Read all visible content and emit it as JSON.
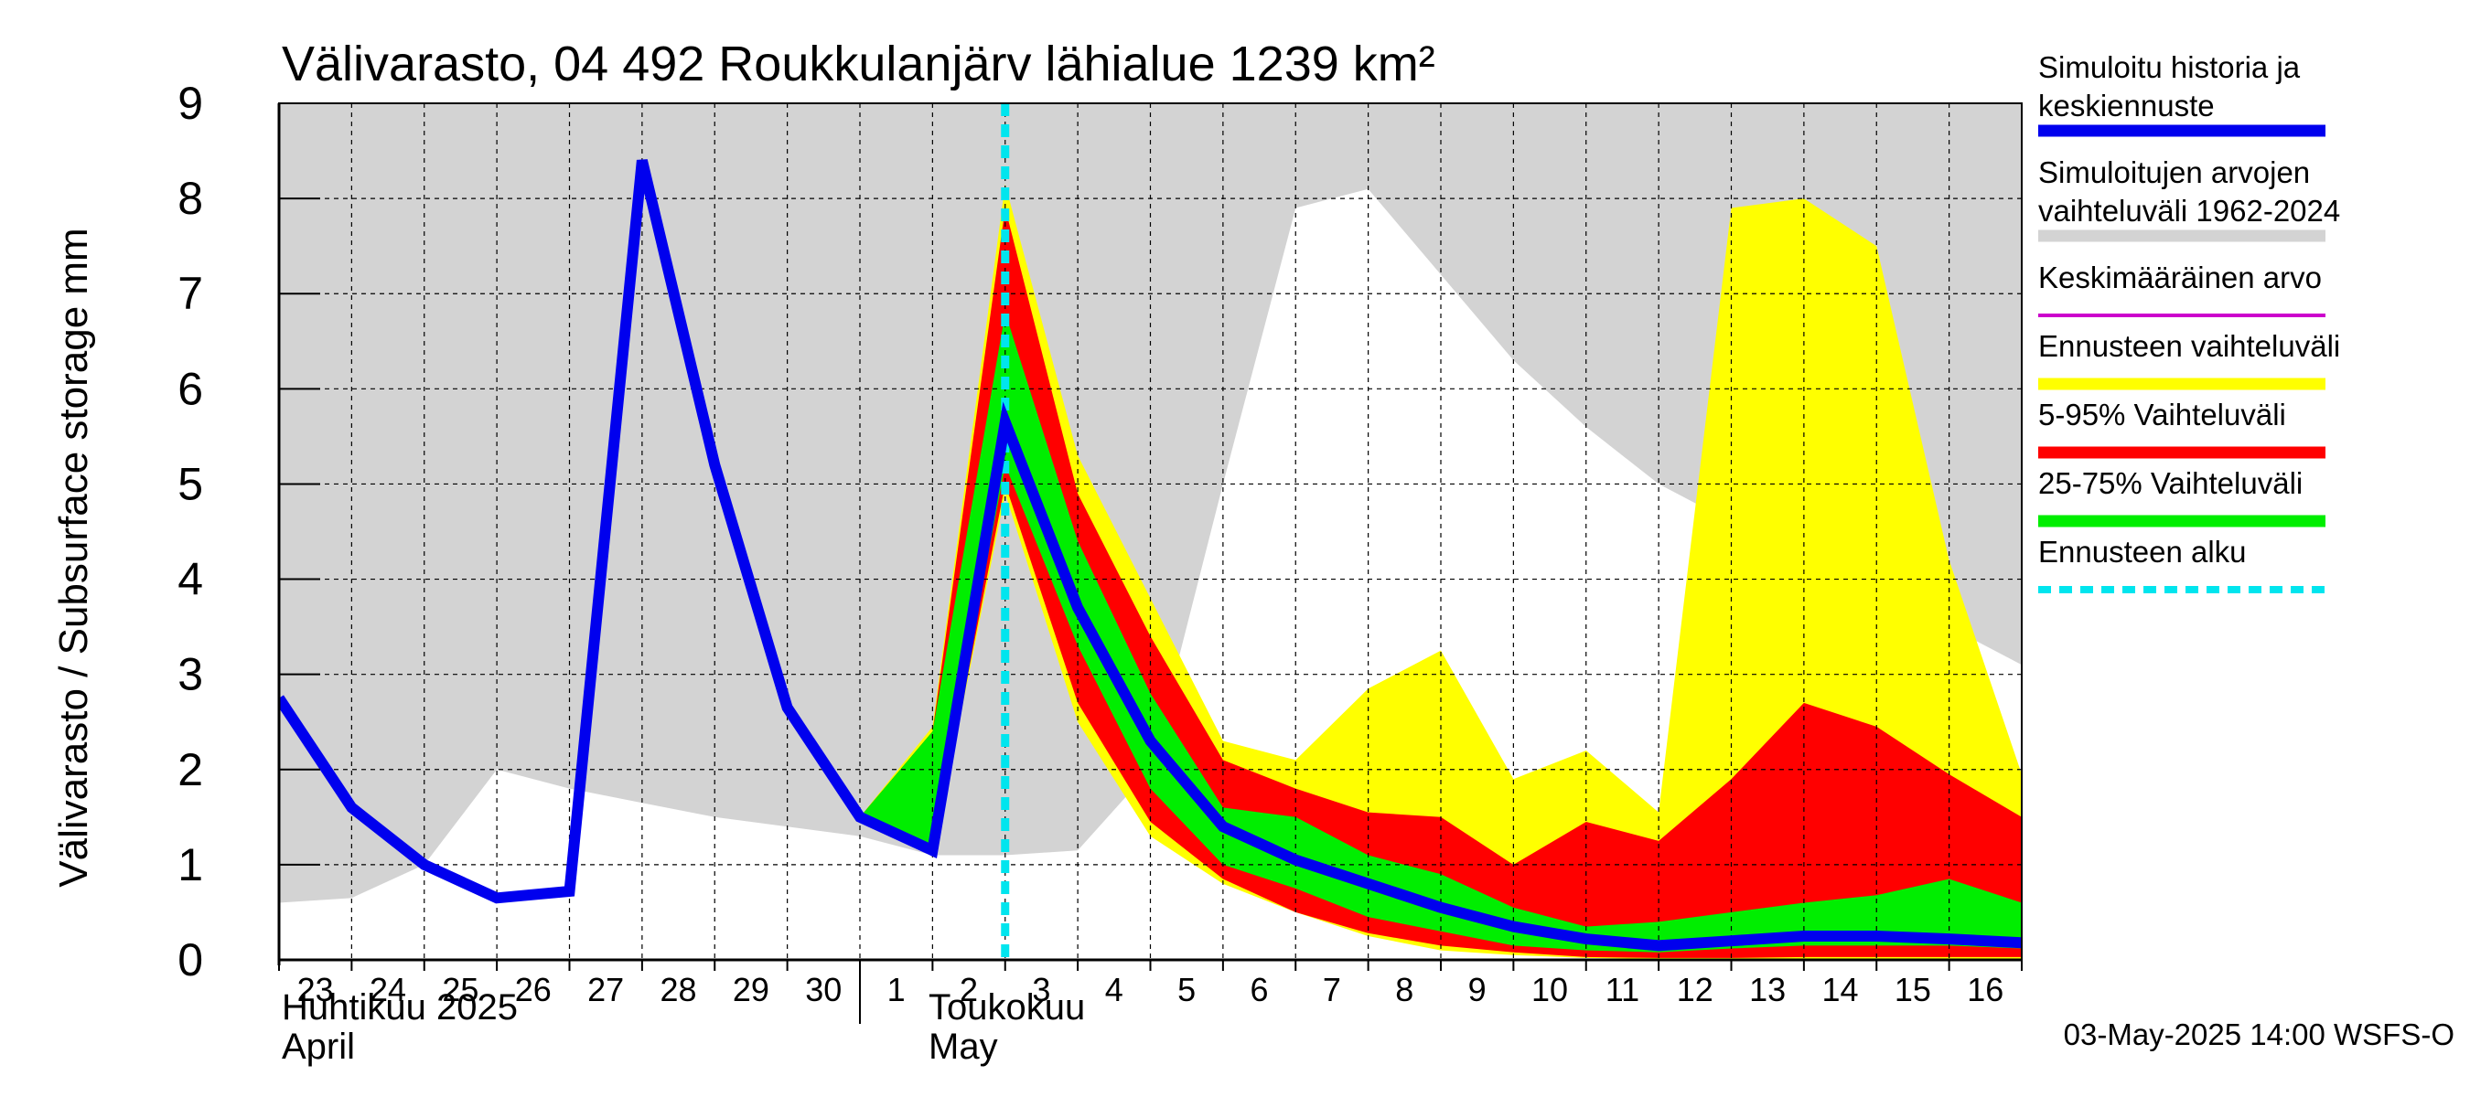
{
  "chart_data": {
    "type": "area",
    "title": "Välivarasto, 04 492 Roukkulanjärv lähialue 1239 km²",
    "ylabel": "Välivarasto / Subsurface storage  mm",
    "xlabel": "",
    "ylim": [
      0,
      9
    ],
    "yticks": [
      "0",
      "1",
      "2",
      "3",
      "4",
      "5",
      "6",
      "7",
      "8",
      "9"
    ],
    "x_days": [
      "2025-04-23",
      "2025-04-24",
      "2025-04-25",
      "2025-04-26",
      "2025-04-27",
      "2025-04-28",
      "2025-04-29",
      "2025-04-30",
      "2025-05-01",
      "2025-05-02",
      "2025-05-03",
      "2025-05-04",
      "2025-05-05",
      "2025-05-06",
      "2025-05-07",
      "2025-05-08",
      "2025-05-09",
      "2025-05-10",
      "2025-05-11",
      "2025-05-12",
      "2025-05-13",
      "2025-05-14",
      "2025-05-15",
      "2025-05-16",
      "2025-05-17"
    ],
    "x_tick_labels": [
      "23",
      "24",
      "25",
      "26",
      "27",
      "28",
      "29",
      "30",
      "1",
      "2",
      "3",
      "4",
      "5",
      "6",
      "7",
      "8",
      "9",
      "10",
      "11",
      "12",
      "13",
      "14",
      "15",
      "16"
    ],
    "months": [
      {
        "fi": "Huhtikuu  2025",
        "en": "April",
        "start_index": 0
      },
      {
        "fi": "Toukokuu",
        "en": "May",
        "start_index": 8
      }
    ],
    "forecast_start_index": 10,
    "series": [
      {
        "name": "Simuloitujen arvojen vaihteluväli 1962-2024",
        "kind": "band",
        "color": "#d3d3d3",
        "lower": [
          0.6,
          0.65,
          1.0,
          2.0,
          1.8,
          1.65,
          1.5,
          1.4,
          1.3,
          1.1,
          1.1,
          1.15,
          2.0,
          5.0,
          7.9,
          8.1,
          7.2,
          6.3,
          5.6,
          5.0,
          4.6,
          4.3,
          3.9,
          3.5,
          3.1
        ],
        "upper": [
          9,
          9,
          9,
          9,
          9,
          9,
          9,
          9,
          9,
          9,
          9,
          9,
          9,
          9,
          9,
          9,
          9,
          9,
          9,
          9,
          9,
          9,
          9,
          9,
          9
        ]
      },
      {
        "name": "Ennusteen vaihteluväli",
        "kind": "band",
        "color": "#ffff00",
        "lower": [
          null,
          null,
          null,
          null,
          null,
          null,
          null,
          null,
          1.5,
          1.1,
          4.9,
          2.5,
          1.3,
          0.8,
          0.5,
          0.25,
          0.1,
          0.05,
          0.02,
          0.01,
          0.0,
          0.0,
          0.0,
          0.0,
          0.0
        ],
        "upper": [
          null,
          null,
          null,
          null,
          null,
          null,
          null,
          null,
          1.5,
          2.45,
          8.15,
          5.3,
          3.8,
          2.3,
          2.1,
          2.85,
          3.25,
          1.9,
          2.2,
          1.55,
          7.9,
          8.0,
          7.5,
          4.2,
          1.95
        ]
      },
      {
        "name": "5-95% Vaihteluväli",
        "kind": "band",
        "color": "#ff0000",
        "lower": [
          null,
          null,
          null,
          null,
          null,
          null,
          null,
          null,
          1.5,
          1.1,
          5.0,
          2.7,
          1.45,
          0.85,
          0.5,
          0.28,
          0.15,
          0.08,
          0.03,
          0.02,
          0.02,
          0.03,
          0.03,
          0.03,
          0.03
        ],
        "upper": [
          null,
          null,
          null,
          null,
          null,
          null,
          null,
          null,
          1.5,
          2.4,
          7.9,
          4.9,
          3.4,
          2.1,
          1.8,
          1.55,
          1.5,
          1.0,
          1.45,
          1.25,
          1.9,
          2.7,
          2.45,
          1.95,
          1.5
        ]
      },
      {
        "name": "25-75% Vaihteluväli",
        "kind": "band",
        "color": "#00ee00",
        "lower": [
          null,
          null,
          null,
          null,
          null,
          null,
          null,
          null,
          1.5,
          1.15,
          5.2,
          3.3,
          1.8,
          1.0,
          0.75,
          0.45,
          0.3,
          0.15,
          0.1,
          0.08,
          0.12,
          0.15,
          0.15,
          0.15,
          0.12
        ],
        "upper": [
          null,
          null,
          null,
          null,
          null,
          null,
          null,
          null,
          1.5,
          2.4,
          6.8,
          4.4,
          2.8,
          1.6,
          1.5,
          1.1,
          0.9,
          0.55,
          0.35,
          0.4,
          0.5,
          0.6,
          0.68,
          0.85,
          0.6
        ]
      },
      {
        "name": "Simuloitu historia ja keskiennuste",
        "kind": "line",
        "color": "#0000ee",
        "values": [
          2.75,
          1.6,
          1.0,
          0.65,
          0.72,
          8.4,
          5.2,
          2.65,
          1.5,
          1.15,
          5.65,
          3.7,
          2.3,
          1.4,
          1.05,
          0.8,
          0.55,
          0.35,
          0.22,
          0.15,
          0.2,
          0.25,
          0.25,
          0.22,
          0.18
        ]
      }
    ],
    "legend": [
      {
        "label": "Simuloitu historia ja keskiennuste",
        "color": "#0000ee",
        "style": "thick"
      },
      {
        "label": "Simuloitujen arvojen vaihteluväli 1962-2024",
        "color": "#d3d3d3",
        "style": "thick"
      },
      {
        "label": "Keskimääräinen arvo",
        "color": "#cc00cc",
        "style": "thin"
      },
      {
        "label": "Ennusteen vaihteluväli",
        "color": "#ffff00",
        "style": "thick"
      },
      {
        "label": "5-95% Vaihteluväli",
        "color": "#ff0000",
        "style": "thick"
      },
      {
        "label": "25-75% Vaihteluväli",
        "color": "#00ee00",
        "style": "thick"
      },
      {
        "label": "Ennusteen alku",
        "color": "#00e5ee",
        "style": "dashed"
      }
    ],
    "timestamp": "03-May-2025 14:00 WSFS-O"
  }
}
